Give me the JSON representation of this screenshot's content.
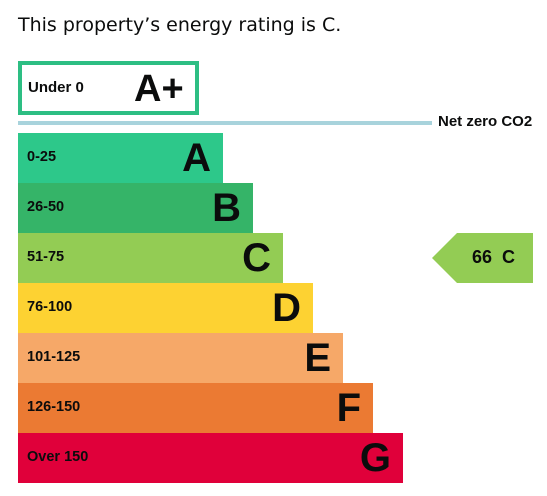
{
  "intro": "This property’s energy rating is C.",
  "top_band": {
    "range": "Under 0",
    "letter": "A+",
    "color": "#2dbe83"
  },
  "net_zero_label": "Net zero CO2",
  "chart_data": {
    "type": "bar",
    "title": "",
    "categories": [
      "A",
      "B",
      "C",
      "D",
      "E",
      "F",
      "G"
    ],
    "ranges": [
      "0-25",
      "26-50",
      "51-75",
      "76-100",
      "101-125",
      "126-150",
      "Over 150"
    ],
    "colors": [
      "#2dc88a",
      "#35b468",
      "#93cc54",
      "#fdd232",
      "#f6a868",
      "#eb7a33",
      "#e0003a"
    ],
    "current": {
      "value": "66",
      "letter": "C",
      "category": "C"
    }
  }
}
